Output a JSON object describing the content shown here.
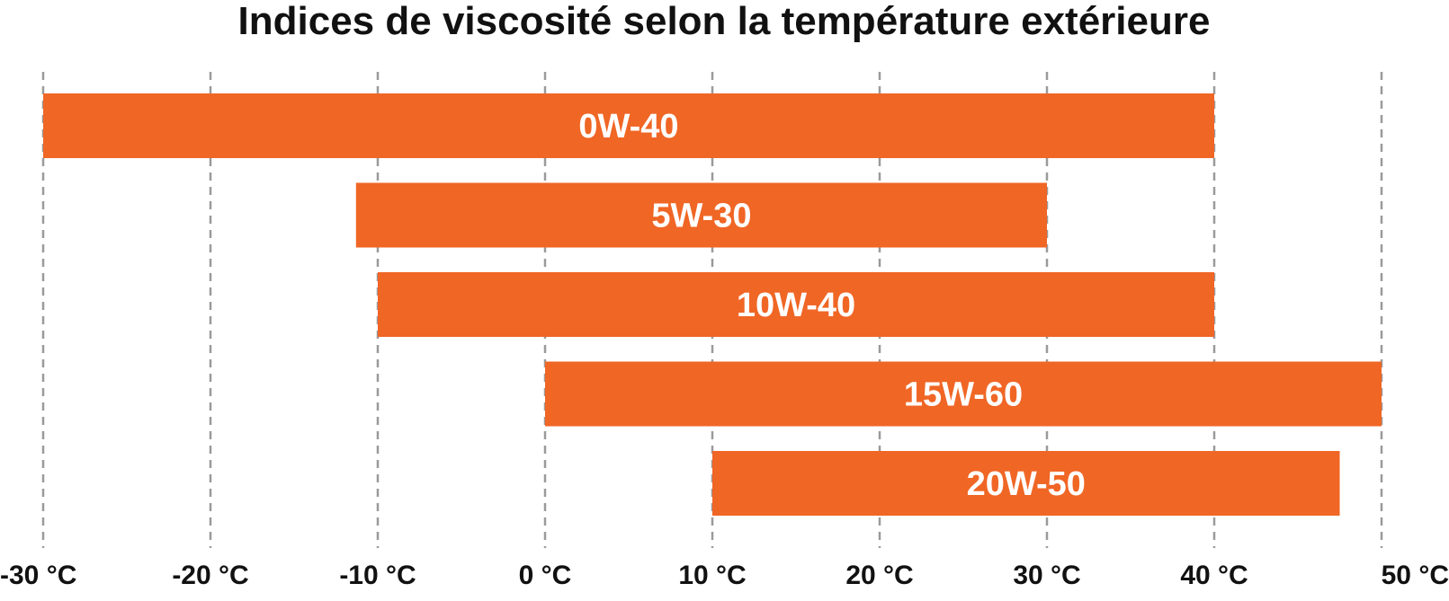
{
  "chart_data": {
    "type": "bar",
    "orientation": "horizontal-range",
    "title": "Indices de viscosité selon la température extérieure",
    "xlabel": "",
    "ylabel": "",
    "xlim": [
      -30,
      50
    ],
    "x_ticks": [
      -30,
      -20,
      -10,
      0,
      10,
      20,
      30,
      40,
      50
    ],
    "x_tick_labels": [
      "-30 °C",
      "-20 °C",
      "-10 °C",
      "0 °C",
      "10 °C",
      "20 °C",
      "30 °C",
      "40 °C",
      "50 °C"
    ],
    "grid": true,
    "legend": "none",
    "bar_color": "#F06625",
    "bar_label_color": "#FFFFFF",
    "categories": [
      "0W-40",
      "5W-30",
      "10W-40",
      "15W-60",
      "20W-50"
    ],
    "ranges": [
      {
        "label": "0W-40",
        "start": -30,
        "end": 40
      },
      {
        "label": "5W-30",
        "start": -11.3,
        "end": 30
      },
      {
        "label": "10W-40",
        "start": -10,
        "end": 40
      },
      {
        "label": "15W-60",
        "start": 0,
        "end": 50
      },
      {
        "label": "20W-50",
        "start": 10,
        "end": 47.5
      }
    ]
  }
}
